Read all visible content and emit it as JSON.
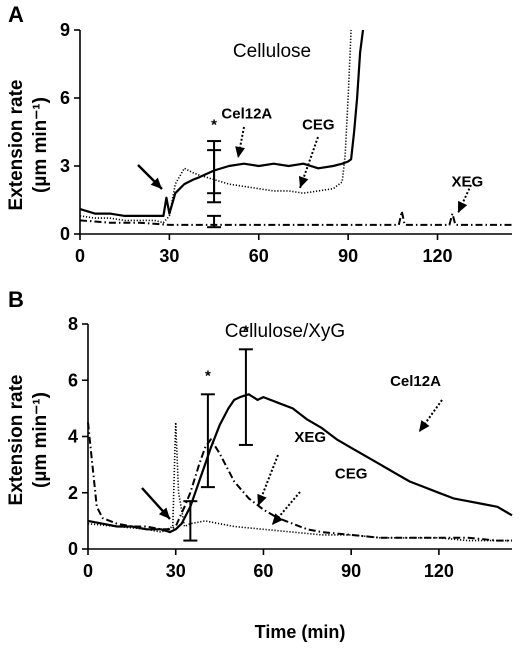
{
  "chart_data": [
    {
      "panel": "A",
      "type": "line",
      "title": "Cellulose",
      "ylabel": "Extension rate (µm min⁻¹)",
      "ylabel_line1": "Extension rate",
      "ylabel_line2": "(µm min⁻¹)",
      "xlim": [
        0,
        145
      ],
      "ylim": [
        0,
        9
      ],
      "xticks": [
        0,
        30,
        60,
        90,
        120
      ],
      "yticks": [
        0,
        3,
        6,
        9
      ],
      "series": [
        {
          "name": "Cel12A",
          "style": "solid",
          "x": [
            0,
            5,
            10,
            15,
            20,
            25,
            28,
            29,
            30,
            32,
            35,
            38,
            40,
            45,
            50,
            55,
            60,
            65,
            70,
            75,
            80,
            85,
            88,
            90,
            91,
            92,
            93,
            94,
            95
          ],
          "y": [
            1.1,
            0.9,
            0.9,
            0.8,
            0.8,
            0.8,
            0.8,
            1.6,
            0.9,
            1.8,
            2.2,
            2.4,
            2.5,
            2.8,
            3.0,
            3.1,
            3.0,
            3.1,
            3.0,
            3.1,
            2.9,
            3.0,
            3.1,
            3.2,
            3.3,
            4.5,
            6.0,
            8.0,
            9.0
          ]
        },
        {
          "name": "CEG",
          "style": "dotted",
          "x": [
            0,
            5,
            10,
            15,
            20,
            25,
            28,
            30,
            32,
            35,
            38,
            40,
            45,
            50,
            55,
            60,
            65,
            70,
            75,
            80,
            85,
            88,
            89,
            90,
            91
          ],
          "y": [
            0.8,
            0.7,
            0.7,
            0.6,
            0.6,
            0.6,
            0.5,
            0.8,
            2.2,
            2.9,
            2.7,
            2.6,
            2.4,
            2.2,
            2.1,
            2.0,
            1.9,
            1.9,
            1.8,
            1.9,
            2.0,
            2.3,
            3.5,
            6.0,
            9.0
          ]
        },
        {
          "name": "XEG",
          "style": "dash-dot",
          "x": [
            0,
            10,
            20,
            30,
            40,
            50,
            60,
            70,
            80,
            90,
            100,
            107,
            108,
            109,
            115,
            124,
            125,
            126,
            130,
            135,
            140,
            145
          ],
          "y": [
            0.6,
            0.5,
            0.5,
            0.4,
            0.4,
            0.4,
            0.4,
            0.4,
            0.4,
            0.4,
            0.4,
            0.4,
            1.0,
            0.4,
            0.4,
            0.4,
            0.9,
            0.4,
            0.4,
            0.4,
            0.4,
            0.4
          ]
        }
      ],
      "error_bars": [
        {
          "x": 45,
          "y": 2.8,
          "lo": 1.4,
          "hi": 4.1
        },
        {
          "x": 45,
          "y": 2.5,
          "lo": 1.8,
          "hi": 3.7
        },
        {
          "x": 45,
          "y": 0.6,
          "lo": 0.3,
          "hi": 0.8
        }
      ],
      "annotations": [
        {
          "text": "*",
          "x": 45,
          "y": 4.6
        },
        {
          "text": "Cel12A",
          "x": 56,
          "y": 5.1
        },
        {
          "text": "CEG",
          "x": 80,
          "y": 4.6
        },
        {
          "text": "XEG",
          "x": 130,
          "y": 2.1
        }
      ]
    },
    {
      "panel": "B",
      "type": "line",
      "title": "Cellulose/XyG",
      "ylabel": "Extension rate (µm min⁻¹)",
      "ylabel_line1": "Extension rate",
      "ylabel_line2": "(µm min⁻¹)",
      "xlabel": "Time (min)",
      "xlim": [
        0,
        145
      ],
      "ylim": [
        0,
        8
      ],
      "xticks": [
        0,
        30,
        60,
        90,
        120
      ],
      "yticks": [
        0,
        2,
        4,
        6,
        8
      ],
      "series": [
        {
          "name": "Cel12A",
          "style": "solid",
          "x": [
            0,
            5,
            10,
            15,
            20,
            25,
            28,
            30,
            32,
            35,
            38,
            40,
            42,
            45,
            48,
            50,
            52,
            55,
            58,
            60,
            65,
            70,
            75,
            80,
            85,
            90,
            95,
            100,
            105,
            110,
            115,
            120,
            125,
            130,
            135,
            140,
            145
          ],
          "y": [
            1.0,
            0.9,
            0.8,
            0.8,
            0.7,
            0.7,
            0.6,
            0.7,
            0.9,
            1.5,
            2.4,
            3.0,
            3.6,
            4.4,
            5.0,
            5.3,
            5.4,
            5.5,
            5.3,
            5.4,
            5.2,
            5.0,
            4.6,
            4.3,
            3.9,
            3.6,
            3.3,
            3.0,
            2.7,
            2.4,
            2.2,
            2.0,
            1.8,
            1.7,
            1.6,
            1.5,
            1.2
          ]
        },
        {
          "name": "XEG",
          "style": "dash-dot",
          "x": [
            0,
            1,
            3,
            5,
            10,
            15,
            20,
            25,
            28,
            30,
            33,
            35,
            38,
            40,
            42,
            45,
            48,
            50,
            55,
            60,
            65,
            70,
            75,
            80,
            90,
            100,
            110,
            120,
            130,
            140,
            145
          ],
          "y": [
            4.5,
            3.5,
            1.5,
            1.1,
            0.9,
            0.8,
            0.8,
            0.7,
            0.7,
            0.8,
            1.5,
            2.0,
            3.0,
            3.6,
            3.9,
            3.4,
            2.8,
            2.4,
            1.8,
            1.4,
            1.1,
            0.9,
            0.7,
            0.6,
            0.5,
            0.4,
            0.4,
            0.4,
            0.4,
            0.3,
            0.3
          ]
        },
        {
          "name": "CEG",
          "style": "dotted",
          "x": [
            0,
            10,
            20,
            25,
            29,
            30,
            31,
            33,
            35,
            40,
            45,
            50,
            60,
            70,
            80,
            90,
            100,
            110,
            120,
            130,
            140,
            145
          ],
          "y": [
            0.9,
            0.8,
            0.7,
            0.6,
            0.8,
            4.5,
            2.0,
            0.8,
            0.9,
            1.0,
            0.9,
            0.8,
            0.7,
            0.6,
            0.5,
            0.5,
            0.4,
            0.4,
            0.4,
            0.3,
            0.3,
            0.3
          ]
        }
      ],
      "error_bars": [
        {
          "x": 35,
          "y": 1.0,
          "lo": 0.3,
          "hi": 1.7
        },
        {
          "x": 41,
          "y": 3.9,
          "lo": 2.2,
          "hi": 5.5
        },
        {
          "x": 54,
          "y": 5.4,
          "lo": 3.7,
          "hi": 7.1
        }
      ],
      "annotations": [
        {
          "text": "*",
          "x": 41,
          "y": 6.0
        },
        {
          "text": "*",
          "x": 54,
          "y": 7.6
        },
        {
          "text": "Cel12A",
          "x": 112,
          "y": 5.8
        },
        {
          "text": "XEG",
          "x": 76,
          "y": 3.8
        },
        {
          "text": "CEG",
          "x": 90,
          "y": 2.5
        }
      ]
    }
  ]
}
